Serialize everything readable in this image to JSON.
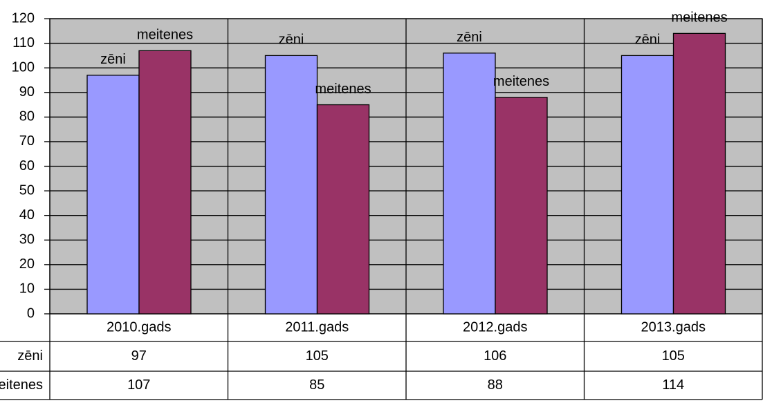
{
  "chart_data": {
    "type": "bar",
    "categories": [
      "2010.gads",
      "2011.gads",
      "2012.gads",
      "2013.gads"
    ],
    "series": [
      {
        "name": "zēni",
        "color": "#9999ff",
        "values": [
          97,
          105,
          106,
          105
        ]
      },
      {
        "name": "meitenes",
        "color": "#993366",
        "values": [
          107,
          85,
          88,
          114
        ]
      }
    ],
    "ylim": [
      0,
      120
    ],
    "yticks": [
      0,
      10,
      20,
      30,
      40,
      50,
      60,
      70,
      80,
      90,
      100,
      110,
      120
    ],
    "grid": true,
    "plot_background": "#c0c0c0"
  }
}
